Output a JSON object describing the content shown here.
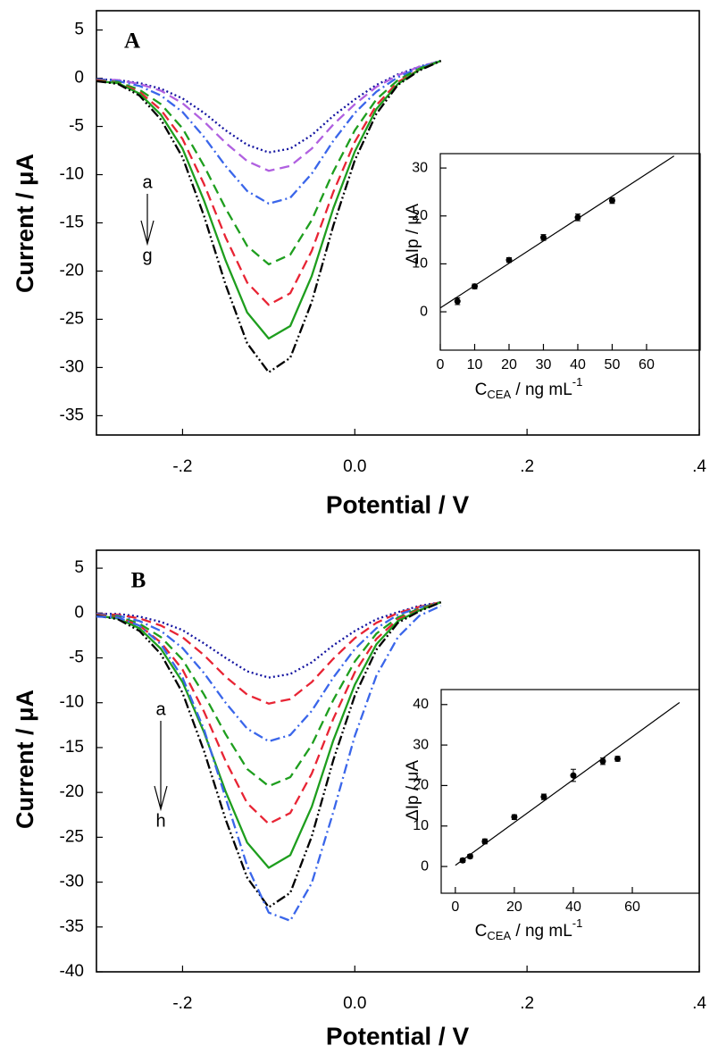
{
  "chart_data": [
    {
      "type": "line",
      "panel_label": "A",
      "annotations": [
        "a",
        "g"
      ],
      "x_label": "Potential / V",
      "y_label": "Current / μA",
      "xlim": [
        -0.3,
        0.4
      ],
      "ylim": [
        -37,
        7
      ],
      "xticks": [
        {
          "value": -0.2,
          "label": "-.2"
        },
        {
          "value": 0,
          "label": "0.0"
        },
        {
          "value": 0.2,
          "label": ".2"
        },
        {
          "value": 0.4,
          "label": ".4"
        }
      ],
      "yticks": [
        5,
        0,
        -5,
        -10,
        -15,
        -20,
        -25,
        -30,
        -35
      ],
      "x": [
        -0.3,
        -0.275,
        -0.25,
        -0.225,
        -0.2,
        -0.175,
        -0.15,
        -0.125,
        -0.1,
        -0.075,
        -0.05,
        -0.025,
        0,
        0.025,
        0.05,
        0.075,
        0.1
      ],
      "series": [
        {
          "color": "#1414a0",
          "dash": "dotted",
          "values": [
            -0.1,
            -0.2,
            -0.5,
            -1.1,
            -2.1,
            -3.6,
            -5.4,
            -6.9,
            -7.7,
            -7.3,
            -5.9,
            -3.9,
            -2.2,
            -0.7,
            0.4,
            1.2,
            1.8
          ]
        },
        {
          "color": "#b060e0",
          "dash": "dash",
          "values": [
            -0.1,
            -0.2,
            -0.6,
            -1.3,
            -2.6,
            -4.5,
            -6.7,
            -8.6,
            -9.6,
            -9.1,
            -7.3,
            -4.8,
            -2.7,
            -0.9,
            0.3,
            1.2,
            1.8
          ]
        },
        {
          "color": "#3a66ea",
          "dash": "dashdot",
          "values": [
            -0.1,
            -0.3,
            -0.8,
            -1.8,
            -3.5,
            -6.1,
            -9.1,
            -11.7,
            -13.0,
            -12.4,
            -9.9,
            -6.5,
            -3.6,
            -1.4,
            0.1,
            1.1,
            1.8
          ]
        },
        {
          "color": "#1e9e1e",
          "dash": "dash",
          "values": [
            -0.2,
            -0.4,
            -1.2,
            -2.7,
            -5.2,
            -9.1,
            -13.5,
            -17.4,
            -19.3,
            -18.3,
            -14.7,
            -9.7,
            -5.4,
            -2.2,
            -0.2,
            1.0,
            1.8
          ]
        },
        {
          "color": "#e82434",
          "dash": "dash",
          "values": [
            -0.2,
            -0.5,
            -1.4,
            -3.3,
            -6.3,
            -11.0,
            -16.5,
            -21.2,
            -23.5,
            -22.3,
            -17.9,
            -11.8,
            -6.6,
            -2.8,
            -0.4,
            0.9,
            1.8
          ]
        },
        {
          "color": "#1e9e1e",
          "dash": "solid",
          "values": [
            -0.3,
            -0.5,
            -1.6,
            -3.8,
            -7.3,
            -12.7,
            -18.9,
            -24.3,
            -27.0,
            -25.7,
            -20.5,
            -13.5,
            -7.6,
            -3.2,
            -0.6,
            0.9,
            1.8
          ]
        },
        {
          "color": "#000000",
          "dash": "dashdotdot",
          "values": [
            -0.3,
            -0.6,
            -1.8,
            -4.3,
            -8.2,
            -14.3,
            -21.4,
            -27.5,
            -30.5,
            -29.0,
            -23.2,
            -15.3,
            -8.5,
            -3.7,
            -0.7,
            0.8,
            1.8
          ]
        }
      ]
    },
    {
      "type": "scatter",
      "x_label": {
        "main": "C",
        "sub": "CEA",
        "rest": " / ng mL",
        "sup": "-1"
      },
      "y_label": "ΔIp / μA",
      "xlim": [
        0,
        75.6
      ],
      "ylim": [
        -8,
        33
      ],
      "xticks": [
        0,
        10,
        20,
        30,
        40,
        50,
        60
      ],
      "yticks": [
        0,
        10,
        20,
        30
      ],
      "x": [
        5,
        10,
        20,
        30,
        40,
        50
      ],
      "values": [
        2.2,
        5.3,
        10.8,
        15.5,
        19.7,
        23.2
      ],
      "errors": [
        0.7,
        0.5,
        0.5,
        0.6,
        0.7,
        0.6
      ],
      "fit": {
        "x": [
          0,
          68
        ],
        "values": [
          0.8,
          32.5
        ]
      }
    },
    {
      "type": "line",
      "panel_label": "B",
      "annotations": [
        "a",
        "h"
      ],
      "x_label": "Potential / V",
      "y_label": "Current / μA",
      "xlim": [
        -0.3,
        0.4
      ],
      "ylim": [
        -40,
        7
      ],
      "xticks": [
        {
          "value": -0.2,
          "label": "-.2"
        },
        {
          "value": 0,
          "label": "0.0"
        },
        {
          "value": 0.2,
          "label": ".2"
        },
        {
          "value": 0.4,
          "label": ".4"
        }
      ],
      "yticks": [
        5,
        0,
        -5,
        -10,
        -15,
        -20,
        -25,
        -30,
        -35,
        -40
      ],
      "x": [
        -0.3,
        -0.275,
        -0.25,
        -0.225,
        -0.2,
        -0.175,
        -0.15,
        -0.125,
        -0.1,
        -0.075,
        -0.05,
        -0.025,
        0,
        0.025,
        0.05,
        0.075,
        0.1
      ],
      "series": [
        {
          "color": "#1414a0",
          "dash": "dotted",
          "values": [
            -0.1,
            -0.1,
            -0.4,
            -1.0,
            -1.9,
            -3.4,
            -5.0,
            -6.5,
            -7.2,
            -6.8,
            -5.5,
            -3.6,
            -2.0,
            -0.7,
            0.1,
            0.8,
            1.2
          ]
        },
        {
          "color": "#e82434",
          "dash": "dash",
          "values": [
            -0.1,
            -0.2,
            -0.6,
            -1.4,
            -2.7,
            -4.7,
            -7.1,
            -9.1,
            -10.1,
            -9.6,
            -7.7,
            -5.1,
            -2.8,
            -1.1,
            0.0,
            0.7,
            1.2
          ]
        },
        {
          "color": "#3a66ea",
          "dash": "dashdot",
          "values": [
            -0.1,
            -0.3,
            -0.9,
            -2.0,
            -3.9,
            -6.7,
            -10.0,
            -12.9,
            -14.3,
            -13.6,
            -10.9,
            -7.2,
            -4.0,
            -1.7,
            -0.2,
            0.6,
            1.2
          ]
        },
        {
          "color": "#1e9e1e",
          "dash": "dash",
          "values": [
            -0.2,
            -0.4,
            -1.2,
            -2.7,
            -5.2,
            -9.1,
            -13.5,
            -17.4,
            -19.3,
            -18.3,
            -14.7,
            -9.7,
            -5.4,
            -2.3,
            -0.5,
            0.5,
            1.2
          ]
        },
        {
          "color": "#e82434",
          "dash": "dash",
          "values": [
            -0.2,
            -0.5,
            -1.4,
            -3.3,
            -6.3,
            -11.0,
            -16.5,
            -21.2,
            -23.5,
            -22.3,
            -17.9,
            -11.8,
            -6.6,
            -2.9,
            -0.7,
            0.4,
            1.2
          ]
        },
        {
          "color": "#1e9e1e",
          "dash": "solid",
          "values": [
            -0.3,
            -0.6,
            -1.7,
            -4.0,
            -7.7,
            -13.3,
            -19.9,
            -25.6,
            -28.4,
            -27.0,
            -21.6,
            -14.2,
            -8.0,
            -3.5,
            -0.9,
            0.3,
            1.2
          ]
        },
        {
          "color": "#000000",
          "dash": "dashdotdot",
          "values": [
            -0.3,
            -0.7,
            -2.0,
            -4.6,
            -8.9,
            -15.4,
            -23.0,
            -29.5,
            -32.8,
            -31.2,
            -24.9,
            -16.4,
            -9.2,
            -4.1,
            -1.1,
            0.2,
            1.2
          ]
        },
        {
          "color": "#3a66ea",
          "dash": "dashdot",
          "values": [
            -0.4,
            -0.5,
            -1.4,
            -3.5,
            -7.2,
            -13.0,
            -20.6,
            -28.2,
            -33.4,
            -34.3,
            -30.1,
            -22.2,
            -13.7,
            -7.0,
            -2.7,
            -0.3,
            0.8
          ]
        }
      ]
    },
    {
      "type": "scatter",
      "x_label": {
        "main": "C",
        "sub": "CEA",
        "rest": " / ng mL",
        "sup": "-1"
      },
      "y_label": "ΔIp / μA",
      "xlim": [
        -4.8,
        82.7
      ],
      "ylim": [
        -6.6,
        43.7
      ],
      "xticks": [
        0,
        20,
        40,
        60
      ],
      "yticks": [
        0,
        10,
        20,
        30,
        40
      ],
      "x": [
        2.5,
        5,
        10,
        20,
        30,
        40,
        50,
        55
      ],
      "values": [
        1.5,
        2.5,
        6.2,
        12.2,
        17.2,
        22.5,
        26.0,
        26.6
      ],
      "errors": [
        0.5,
        0.5,
        0.6,
        0.6,
        0.7,
        1.5,
        0.8,
        0.6
      ],
      "fit": {
        "x": [
          0,
          76
        ],
        "values": [
          0.3,
          40.5
        ]
      }
    }
  ]
}
